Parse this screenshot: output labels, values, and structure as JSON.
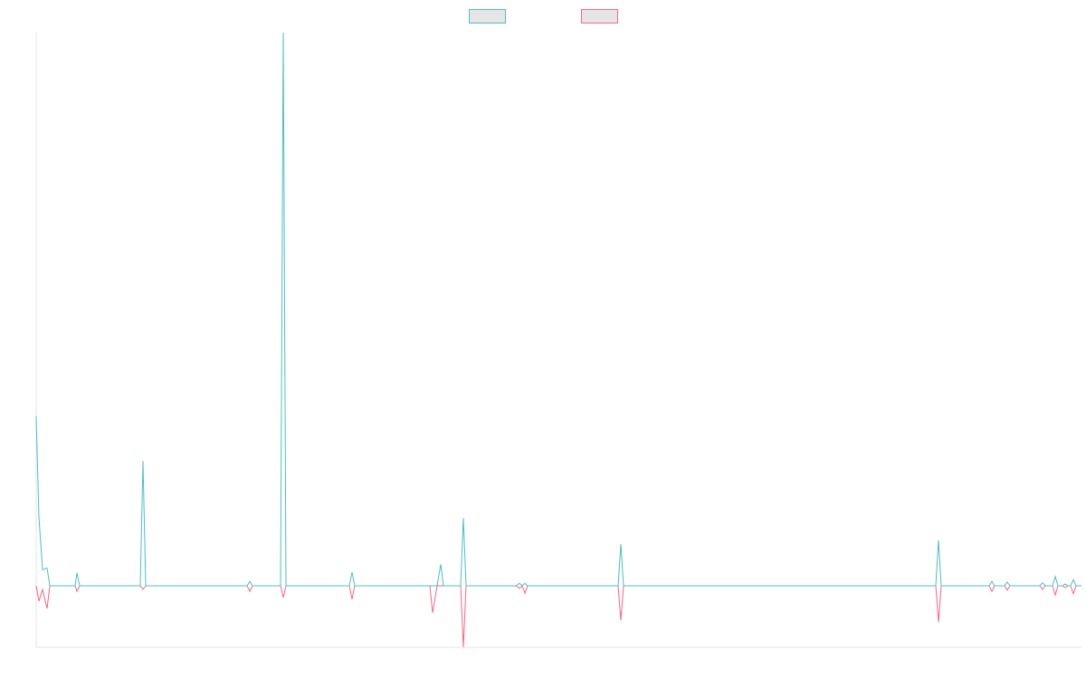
{
  "chart_data": {
    "type": "line",
    "x": [
      0,
      3,
      7,
      12,
      15,
      43,
      45,
      48,
      115,
      118,
      121,
      233,
      236,
      239,
      270,
      273,
      276,
      346,
      349,
      352,
      435,
      438,
      443,
      447,
      450,
      469,
      472,
      475,
      530,
      534,
      537,
      540,
      543,
      643,
      646,
      649,
      994,
      997,
      1000,
      1053,
      1056,
      1059,
      1070,
      1073,
      1076,
      1109,
      1112,
      1115,
      1123,
      1126,
      1129,
      1134,
      1137,
      1140,
      1143,
      1146,
      1149,
      1155
    ],
    "series": [
      {
        "color": "#4bc0c0",
        "values": [
          27.6,
          11.2,
          2.6,
          2.9,
          0,
          0,
          2.1,
          0,
          0,
          20.3,
          0,
          0,
          0.7,
          0,
          0,
          90,
          0,
          0,
          2.2,
          0,
          0,
          0,
          0,
          3.5,
          0,
          0,
          11,
          0,
          0,
          0.4,
          0,
          0.4,
          0,
          0,
          6.8,
          0,
          0,
          7.4,
          0,
          0,
          0.7,
          0,
          0,
          0.6,
          0,
          0,
          0.5,
          0,
          0,
          1.5,
          0,
          0,
          0.3,
          0,
          0,
          1,
          0,
          0
        ]
      },
      {
        "color": "#ff6384",
        "values": [
          0,
          -2.5,
          -0.6,
          -3.7,
          0,
          0,
          -0.9,
          0,
          0,
          -0.6,
          0,
          0,
          -0.9,
          0,
          0,
          -1.9,
          0,
          0,
          -2.2,
          0,
          0,
          -4.4,
          0,
          0,
          0,
          0,
          -10,
          0,
          0,
          -0.4,
          0,
          -1.2,
          0,
          0,
          -5.6,
          0,
          0,
          -5.9,
          0,
          0,
          -0.9,
          0,
          0,
          -0.7,
          0,
          0,
          -0.6,
          0,
          0,
          -1.5,
          0,
          0,
          -0.3,
          0,
          0,
          -1.3,
          0,
          0
        ]
      }
    ],
    "xlim": [
      0,
      1155
    ],
    "ylim": [
      -10,
      90
    ],
    "legend": "top"
  }
}
